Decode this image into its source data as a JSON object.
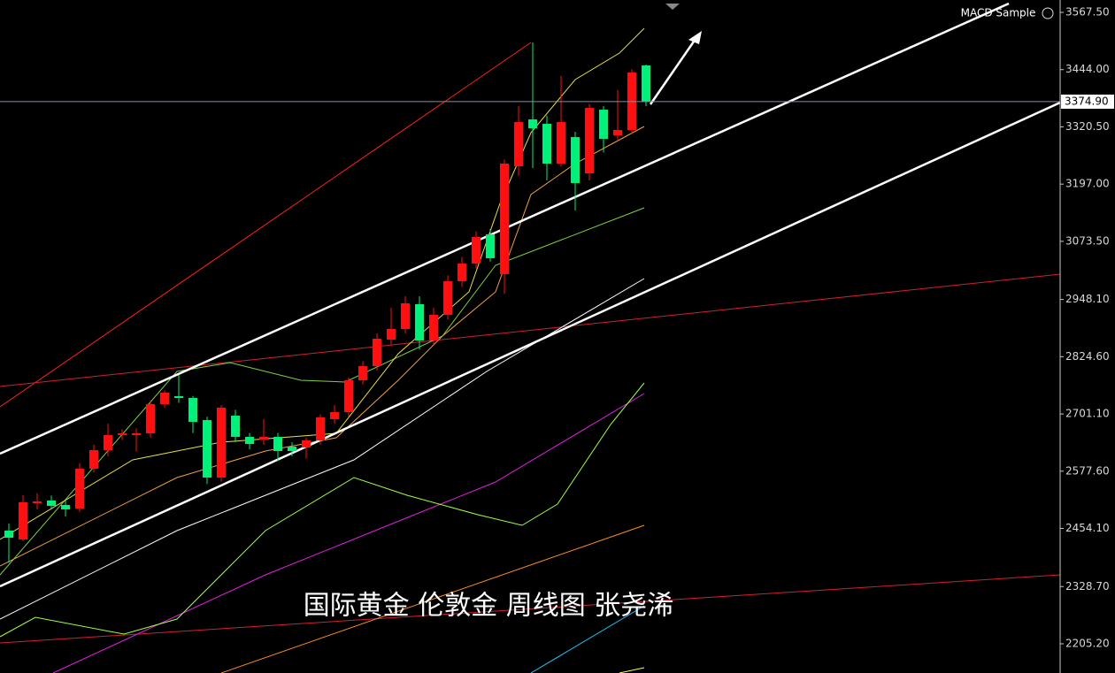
{
  "chart_data": {
    "type": "candlestick",
    "title": "国际黄金 伦敦金 周线图 张尧浠",
    "indicator_label": "MACD Sample",
    "up_color": "#ff1010",
    "down_color": "#00f07a",
    "ylim": [
      2142.2,
      3594.2
    ],
    "yticks": [
      {
        "value": 3567.5,
        "label": "3567.50"
      },
      {
        "value": 3444,
        "label": "3444.00"
      },
      {
        "value": 3320.5,
        "label": "3320.50"
      },
      {
        "value": 3197,
        "label": "3197.00"
      },
      {
        "value": 3073.5,
        "label": "3073.50"
      },
      {
        "value": 2948.1,
        "label": "2948.10"
      },
      {
        "value": 2824.6,
        "label": "2824.60"
      },
      {
        "value": 2701.1,
        "label": "2701.10"
      },
      {
        "value": 2577.6,
        "label": "2577.60"
      },
      {
        "value": 2454.1,
        "label": "2454.10"
      },
      {
        "value": 2328.7,
        "label": "2328.70"
      },
      {
        "value": 2205.2,
        "label": "2205.20"
      }
    ],
    "current_price": {
      "value": 3374.9,
      "label": "3374.90"
    },
    "open": [
      2449.4,
      2430.3,
      2508.6,
      2514.3,
      2504.7,
      2497.1,
      2583.0,
      2623.0,
      2655.5,
      2655.5,
      2659.3,
      2722.3,
      2739.4,
      2735.6,
      2687.9,
      2563.9,
      2697.5,
      2651.7,
      2645.9,
      2651.7,
      2630.7,
      2628.8,
      2644.0,
      2689.8,
      2705.1,
      2773.8,
      2804.3,
      2861.5,
      2884.4,
      2937.9,
      2859.6,
      2915.0,
      2987.5,
      3025.6,
      3088.6,
      3002.7,
      3235.5,
      3336.6,
      3327.1,
      3241.2,
      3298.5,
      3220.2,
      3357.6,
      3302.3,
      3313.7,
      3453.0
    ],
    "high": [
      2465,
      2525.7,
      2530,
      2525,
      2515,
      2595,
      2635,
      2680,
      2668,
      2670,
      2730,
      2752,
      2785,
      2740,
      2695,
      2720,
      2710,
      2660,
      2690,
      2660,
      2640,
      2650,
      2700,
      2720,
      2780,
      2815,
      2875,
      2930,
      2955,
      2955,
      2930,
      3000,
      3040,
      3095,
      3100,
      3250,
      3365,
      3502.6,
      3345,
      3430,
      3310,
      3370,
      3365,
      3400,
      3445,
      3455
    ],
    "low": [
      2380,
      2426.5,
      2495,
      2495,
      2480,
      2490,
      2575,
      2610,
      2645,
      2620,
      2650,
      2715,
      2725,
      2660,
      2550,
      2555,
      2640,
      2625,
      2635,
      2600,
      2610,
      2605,
      2635,
      2680,
      2695,
      2765,
      2795,
      2850,
      2875,
      2840,
      2850,
      2905,
      2975,
      3015,
      3030,
      2960,
      3215,
      3231.7,
      3205,
      3235,
      3140,
      3205,
      3265,
      3290,
      3305,
      3365
    ],
    "close": [
      2434.1,
      2510.5,
      2512.4,
      2502.8,
      2495.2,
      2583.0,
      2623.0,
      2655.5,
      2659.3,
      2659.3,
      2722.3,
      2747.1,
      2735.6,
      2684.1,
      2563.9,
      2714.6,
      2651.7,
      2636.4,
      2651.7,
      2621.1,
      2621.1,
      2644.0,
      2693.6,
      2705.1,
      2773.8,
      2804.3,
      2863.4,
      2884.4,
      2939.8,
      2859.6,
      2915.0,
      2987.5,
      3025.6,
      3082.9,
      3037.1,
      3241.2,
      3330.9,
      3317.5,
      3241.2,
      3330.9,
      3199.3,
      3361.4,
      3294.7,
      3313.7,
      3437.8,
      3374.9
    ]
  }
}
